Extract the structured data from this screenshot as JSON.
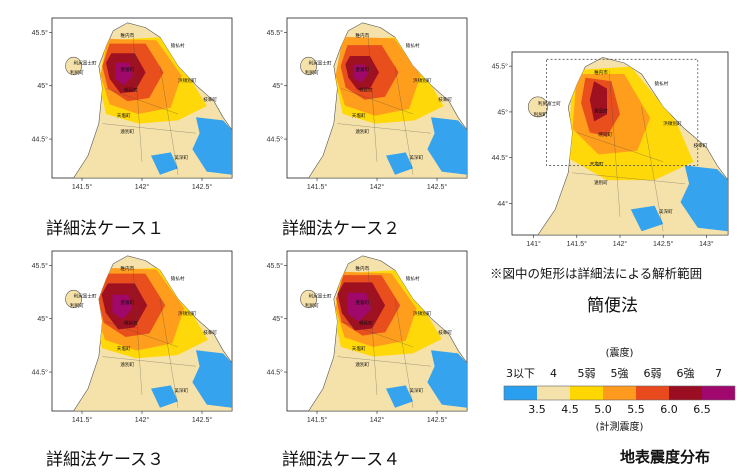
{
  "chart_data": [
    {
      "type": "heatmap",
      "caption": "詳細法ケース１",
      "x_ticks": [
        "141.5°",
        "142°",
        "142.5°"
      ],
      "y_ticks": [
        "45.5°",
        "45°",
        "44.5°"
      ],
      "place_labels": [
        "稚内市",
        "猿払村",
        "利尻富士町",
        "利尻町",
        "豊富町",
        "浜頓別町",
        "幌延町",
        "枝幸町",
        "天塩町",
        "遠別町",
        "美深町"
      ]
    },
    {
      "type": "heatmap",
      "caption": "詳細法ケース２",
      "x_ticks": [
        "141.5°",
        "142°",
        "142.5°"
      ],
      "y_ticks": [
        "45.5°",
        "45°",
        "44.5°"
      ],
      "place_labels": [
        "稚内市",
        "猿払村",
        "利尻富士町",
        "利尻町",
        "豊富町",
        "浜頓別町",
        "幌延町",
        "枝幸町",
        "天塩町",
        "遠別町",
        "美深町"
      ]
    },
    {
      "type": "heatmap",
      "caption": "詳細法ケース３",
      "x_ticks": [
        "141.5°",
        "142°",
        "142.5°"
      ],
      "y_ticks": [
        "45.5°",
        "45°",
        "44.5°"
      ],
      "place_labels": [
        "稚内市",
        "猿払村",
        "利尻富士町",
        "利尻町",
        "豊富町",
        "浜頓別町",
        "幌延町",
        "枝幸町",
        "天塩町",
        "遠別町",
        "美深町"
      ]
    },
    {
      "type": "heatmap",
      "caption": "詳細法ケース４",
      "x_ticks": [
        "141.5°",
        "142°",
        "142.5°"
      ],
      "y_ticks": [
        "45.5°",
        "45°",
        "44.5°"
      ],
      "place_labels": [
        "稚内市",
        "猿払村",
        "利尻富士町",
        "利尻町",
        "豊富町",
        "浜頓別町",
        "幌延町",
        "枝幸町",
        "天塩町",
        "遠別町",
        "美深町"
      ]
    },
    {
      "type": "heatmap",
      "caption": "簡便法",
      "x_ticks": [
        "141°",
        "141.5°",
        "142°",
        "142.5°",
        "143°"
      ],
      "y_ticks": [
        "45.5°",
        "45°",
        "44.5°",
        "44°"
      ],
      "place_labels": [
        "稚内市",
        "猿払村",
        "利尻富士町",
        "利尻町",
        "豊富町",
        "浜頓別町",
        "幌延町",
        "枝幸町",
        "天塩町",
        "遠別町",
        "美深町"
      ]
    }
  ],
  "note": "※図中の矩形は詳細法による解析範囲",
  "legend": {
    "top_label": "(震度)",
    "classes": [
      "3以下",
      "4",
      "5弱",
      "5強",
      "6弱",
      "6強",
      "7"
    ],
    "colors": [
      "#2a9ff0",
      "#f5e2aa",
      "#ffd700",
      "#ff9a1e",
      "#e84a1e",
      "#9b0e22",
      "#a0086e"
    ],
    "thresholds": [
      "3.5",
      "4.5",
      "5.0",
      "5.5",
      "6.0",
      "6.5"
    ],
    "bottom_label": "(計測震度)"
  },
  "figure_title": "地表震度分布"
}
